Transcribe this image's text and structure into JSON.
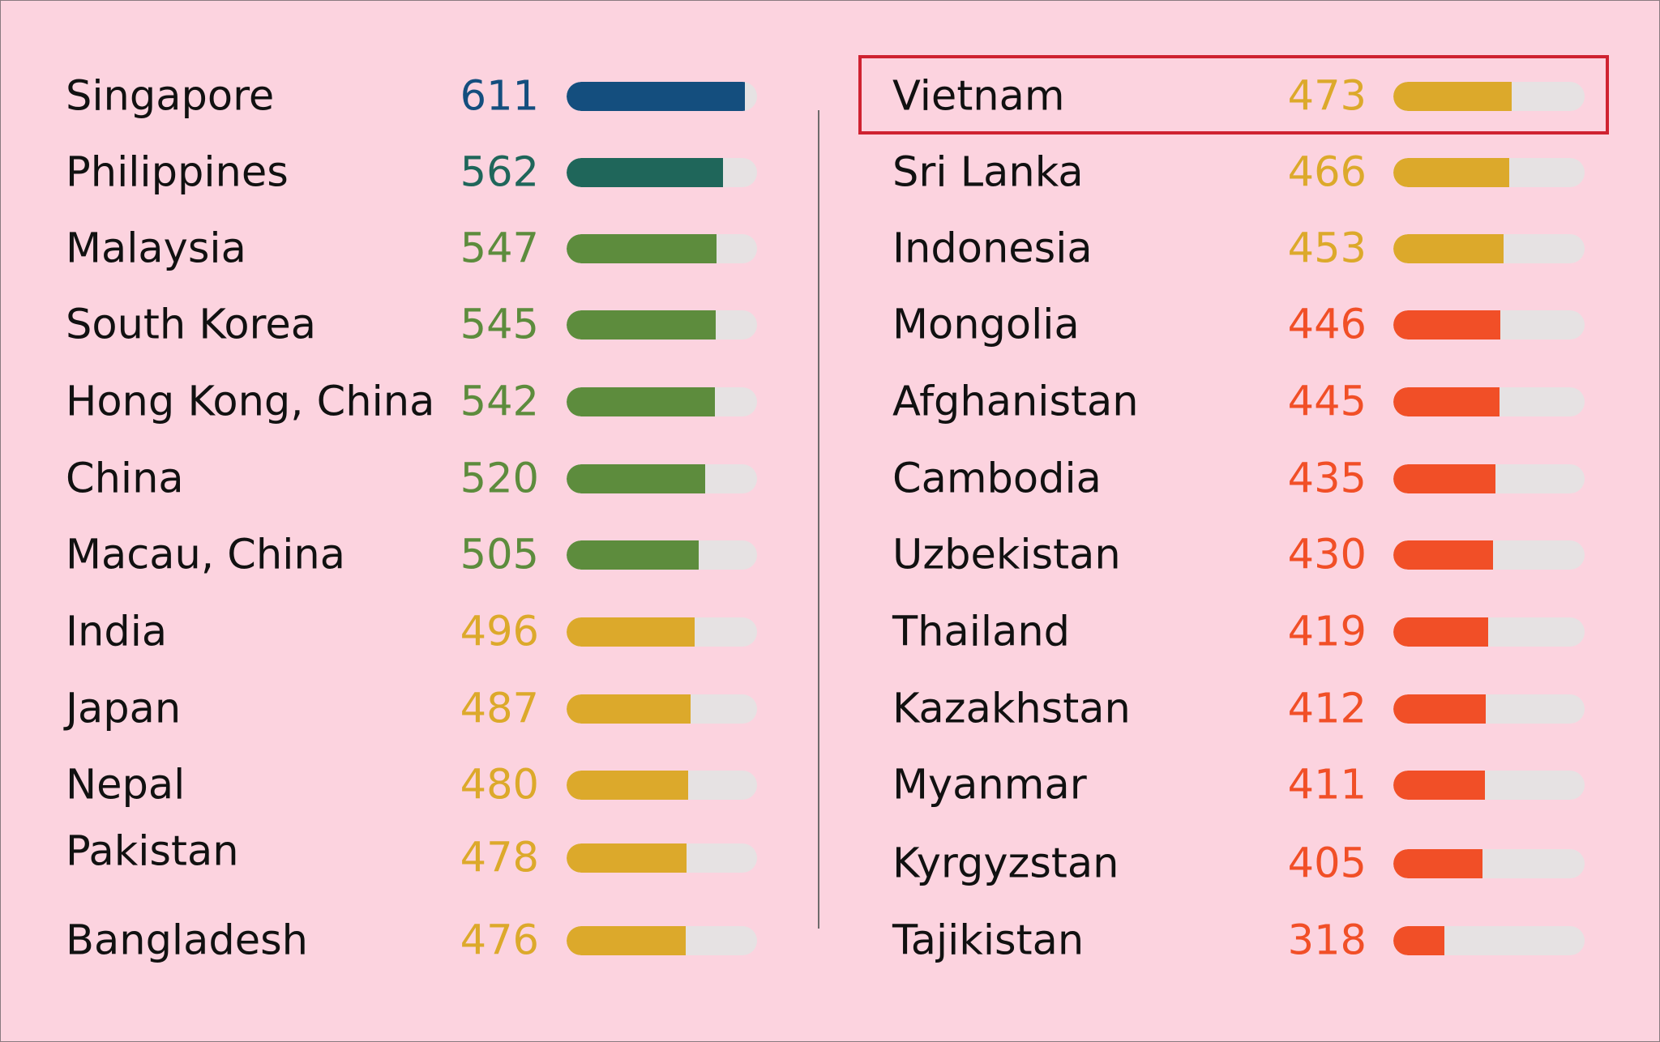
{
  "chart_data": {
    "type": "bar",
    "title": "",
    "colors": {
      "top": "#144e7e",
      "high": "#1f665a",
      "upper": "#5d8c3d",
      "middle": "#dca92b",
      "lower": "#f14f27"
    },
    "highlighted": "Vietnam",
    "columns": [
      {
        "rows": [
          {
            "country": "Singapore",
            "score": "611",
            "value": 611,
            "band": "top"
          },
          {
            "country": "Philippines",
            "score": "562",
            "value": 562,
            "band": "high"
          },
          {
            "country": "Malaysia",
            "score": "547",
            "value": 547,
            "band": "upper"
          },
          {
            "country": "South Korea",
            "score": "545",
            "value": 545,
            "band": "upper"
          },
          {
            "country": "Hong Kong, China",
            "score": "542",
            "value": 542,
            "band": "upper"
          },
          {
            "country": "China",
            "score": "520",
            "value": 520,
            "band": "upper"
          },
          {
            "country": "Macau, China",
            "score": "505",
            "value": 505,
            "band": "upper"
          },
          {
            "country": "India",
            "score": "496",
            "value": 496,
            "band": "middle"
          },
          {
            "country": "Japan",
            "score": "487",
            "value": 487,
            "band": "middle"
          },
          {
            "country": "Nepal",
            "score": "480",
            "value": 480,
            "band": "middle"
          },
          {
            "country": "Pakistan",
            "score": "478",
            "value": 478,
            "band": "middle"
          },
          {
            "country": "Bangladesh",
            "score": "476",
            "value": 476,
            "band": "middle"
          }
        ]
      },
      {
        "rows": [
          {
            "country": "Vietnam",
            "score": "473",
            "value": 473,
            "band": "middle"
          },
          {
            "country": "Sri Lanka",
            "score": "466",
            "value": 466,
            "band": "middle"
          },
          {
            "country": "Indonesia",
            "score": "453",
            "value": 453,
            "band": "middle"
          },
          {
            "country": "Mongolia",
            "score": "446",
            "value": 446,
            "band": "lower"
          },
          {
            "country": "Afghanistan",
            "score": "445",
            "value": 445,
            "band": "lower"
          },
          {
            "country": "Cambodia",
            "score": "435",
            "value": 435,
            "band": "lower"
          },
          {
            "country": "Uzbekistan",
            "score": "430",
            "value": 430,
            "band": "lower"
          },
          {
            "country": "Thailand",
            "score": "419",
            "value": 419,
            "band": "lower"
          },
          {
            "country": "Kazakhstan",
            "score": "412",
            "value": 412,
            "band": "lower"
          },
          {
            "country": "Myanmar",
            "score": "411",
            "value": 411,
            "band": "lower"
          },
          {
            "country": "Kyrgyzstan",
            "score": "405",
            "value": 405,
            "band": "lower"
          },
          {
            "country": "Tajikistan",
            "score": "318",
            "value": 318,
            "band": "lower"
          }
        ]
      }
    ]
  }
}
